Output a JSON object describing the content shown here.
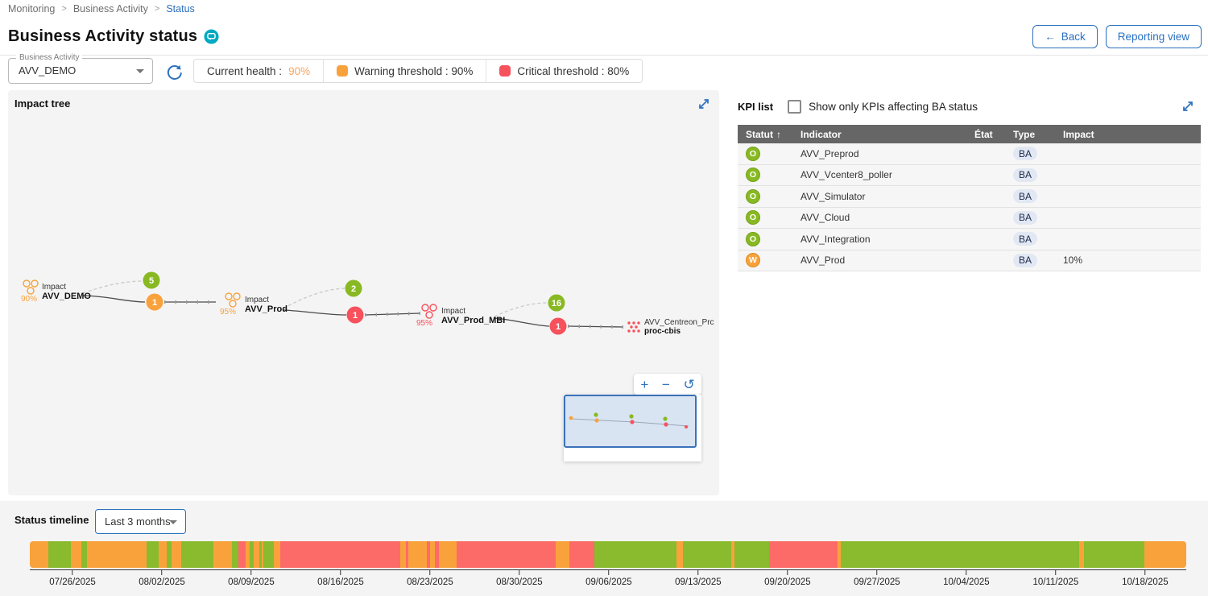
{
  "breadcrumb": {
    "items": [
      {
        "label": "Monitoring"
      },
      {
        "label": "Business Activity"
      },
      {
        "label": "Status"
      }
    ]
  },
  "header": {
    "title": "Business Activity status",
    "back_label": "Back",
    "back_arrow": "←",
    "reporting_view_label": "Reporting view"
  },
  "filters": {
    "ba_select_label": "Business Activity",
    "ba_select_value": "AVV_DEMO"
  },
  "health": {
    "current_label": "Current health :",
    "current_value": "90%",
    "warning_label": "Warning threshold : 90%",
    "critical_label": "Critical threshold : 80%"
  },
  "impact_tree": {
    "title": "Impact tree",
    "nodes": [
      {
        "prefix": "Impact",
        "name": "AVV_DEMO",
        "health": "90%"
      },
      {
        "prefix": "Impact",
        "name": "AVV_Prod",
        "health": "95%"
      },
      {
        "prefix": "Impact",
        "name": "AVV_Prod_MBI",
        "health": "95%"
      },
      {
        "name": "AVV_Centreon_Prc",
        "sub": "proc-cbis"
      }
    ],
    "badges": [
      {
        "ok": "5",
        "child": "1"
      },
      {
        "ok": "2",
        "child": "1"
      },
      {
        "ok": "16",
        "child": "1"
      }
    ],
    "controls": {
      "zoom_in": "+",
      "zoom_out": "−",
      "reset": "↺"
    }
  },
  "kpi_list": {
    "title": "KPI list",
    "filter_label": "Show only KPIs affecting BA status",
    "sort_arrow": "↑",
    "columns": [
      "Statut",
      "Indicator",
      "État",
      "Type",
      "Impact"
    ],
    "rows": [
      {
        "status": "O",
        "indicator": "AVV_Preprod",
        "etat": "",
        "type": "BA",
        "impact": ""
      },
      {
        "status": "O",
        "indicator": "AVV_Vcenter8_poller",
        "etat": "",
        "type": "BA",
        "impact": ""
      },
      {
        "status": "O",
        "indicator": "AVV_Simulator",
        "etat": "",
        "type": "BA",
        "impact": ""
      },
      {
        "status": "O",
        "indicator": "AVV_Cloud",
        "etat": "",
        "type": "BA",
        "impact": ""
      },
      {
        "status": "O",
        "indicator": "AVV_Integration",
        "etat": "",
        "type": "BA",
        "impact": ""
      },
      {
        "status": "W",
        "indicator": "AVV_Prod",
        "etat": "",
        "type": "BA",
        "impact": "10%"
      }
    ]
  },
  "timeline": {
    "title": "Status timeline",
    "range_value": "Last 3 months",
    "colors": {
      "ok": "#8ABA2D",
      "warning": "#F9A23C",
      "critical": "#FC6B68"
    },
    "segments": [
      [
        "warning",
        23
      ],
      [
        "ok",
        28
      ],
      [
        "warning",
        13
      ],
      [
        "ok",
        7
      ],
      [
        "warning",
        74
      ],
      [
        "ok",
        15
      ],
      [
        "warning",
        10
      ],
      [
        "ok",
        6
      ],
      [
        "warning",
        12
      ],
      [
        "ok",
        40
      ],
      [
        "warning",
        23
      ],
      [
        "ok",
        8
      ],
      [
        "critical",
        9
      ],
      [
        "warning",
        5
      ],
      [
        "ok",
        5
      ],
      [
        "warning",
        7
      ],
      [
        "ok",
        3
      ],
      [
        "warning",
        2
      ],
      [
        "ok",
        13
      ],
      [
        "warning",
        8
      ],
      [
        "critical",
        149
      ],
      [
        "warning",
        7
      ],
      [
        "critical",
        3
      ],
      [
        "warning",
        23
      ],
      [
        "critical",
        4
      ],
      [
        "warning",
        6
      ],
      [
        "critical",
        5
      ],
      [
        "warning",
        22
      ],
      [
        "critical",
        123
      ],
      [
        "warning",
        17
      ],
      [
        "critical",
        31
      ],
      [
        "ok",
        102
      ],
      [
        "warning",
        8
      ],
      [
        "ok",
        60
      ],
      [
        "warning",
        4
      ],
      [
        "ok",
        43
      ],
      [
        "critical",
        85
      ],
      [
        "warning",
        4
      ],
      [
        "ok",
        296
      ],
      [
        "warning",
        6
      ],
      [
        "ok",
        75
      ],
      [
        "warning",
        52
      ]
    ],
    "dates": [
      "07/26/2025",
      "08/02/2025",
      "08/09/2025",
      "08/16/2025",
      "08/23/2025",
      "08/30/2025",
      "09/06/2025",
      "09/13/2025",
      "09/20/2025",
      "09/27/2025",
      "10/04/2025",
      "10/11/2025",
      "10/18/2025"
    ]
  },
  "colors": {
    "accent_blue": "#2B70BE",
    "teal": "#00A9C1",
    "ok_green": "#88B922",
    "warning_orange": "#F9A23C",
    "critical_red": "#F7515C"
  }
}
